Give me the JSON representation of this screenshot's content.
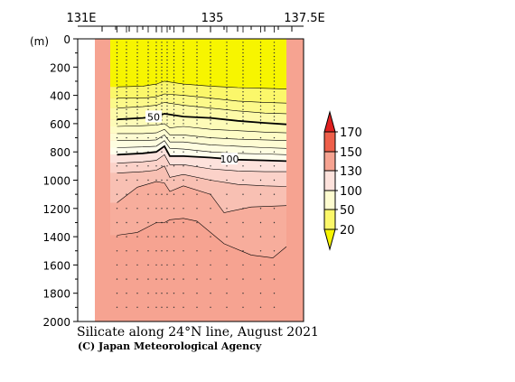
{
  "chart_data": {
    "type": "heatmap",
    "title": "Silicate along 24°N line, August 2021",
    "credit": "(C) Japan Meteorological Agency",
    "x_axis": {
      "min_lon": 131,
      "max_lon": 137.5,
      "tick_labels": [
        {
          "lon": 131,
          "label": "131E"
        },
        {
          "lon": 135,
          "label": "135"
        },
        {
          "lon": 137.5,
          "label": "137.5E"
        }
      ]
    },
    "y_axis": {
      "unit_label": "(m)",
      "range": [
        0,
        2000
      ],
      "ticks": [
        0,
        200,
        400,
        600,
        800,
        1000,
        1200,
        1400,
        1600,
        1800,
        2000
      ]
    },
    "stations_lon": [
      131.55,
      131.9,
      132.3,
      132.7,
      133.0,
      133.2,
      133.4,
      133.65,
      134.0,
      134.5,
      135.0,
      135.6,
      136.2,
      136.85,
      137.35
    ],
    "contours": [
      {
        "level": 20,
        "labeled": false,
        "lon": [
          131.55,
          132.5,
          133.0,
          133.3,
          134.0,
          135.0,
          136.0,
          137.0,
          137.8
        ],
        "depth": [
          340,
          335,
          320,
          300,
          320,
          335,
          345,
          350,
          355
        ]
      },
      {
        "level": 30,
        "labeled": false,
        "lon": [
          131.55,
          132.5,
          133.0,
          133.3,
          134.0,
          135.0,
          136.0,
          137.0,
          137.8
        ],
        "depth": [
          420,
          420,
          410,
          390,
          400,
          420,
          440,
          450,
          455
        ]
      },
      {
        "level": 40,
        "labeled": false,
        "lon": [
          131.55,
          132.5,
          133.0,
          133.3,
          134.0,
          135.0,
          136.0,
          137.0,
          137.8
        ],
        "depth": [
          490,
          480,
          470,
          450,
          470,
          490,
          510,
          525,
          530
        ]
      },
      {
        "level": 50,
        "labeled": true,
        "lon": [
          131.55,
          132.5,
          133.0,
          133.3,
          134.0,
          135.0,
          136.0,
          137.0,
          137.8
        ],
        "depth": [
          570,
          560,
          550,
          530,
          550,
          560,
          580,
          595,
          605
        ]
      },
      {
        "level": 60,
        "labeled": false,
        "lon": [
          131.55,
          132.5,
          133.0,
          133.3,
          133.5,
          134.0,
          135.0,
          136.0,
          137.0,
          137.8
        ],
        "depth": [
          620,
          615,
          610,
          600,
          630,
          620,
          640,
          650,
          660,
          665
        ]
      },
      {
        "level": 70,
        "labeled": false,
        "lon": [
          131.55,
          132.5,
          133.0,
          133.3,
          133.5,
          134.0,
          135.0,
          136.0,
          137.0,
          137.8
        ],
        "depth": [
          670,
          670,
          665,
          640,
          680,
          680,
          700,
          710,
          715,
          720
        ]
      },
      {
        "level": 80,
        "labeled": false,
        "lon": [
          131.55,
          132.5,
          133.0,
          133.3,
          133.5,
          134.0,
          135.0,
          136.0,
          137.0,
          137.8
        ],
        "depth": [
          720,
          720,
          715,
          680,
          730,
          730,
          750,
          760,
          770,
          775
        ]
      },
      {
        "level": 90,
        "labeled": false,
        "lon": [
          131.55,
          132.5,
          133.0,
          133.3,
          133.5,
          134.0,
          135.0,
          136.0,
          137.0,
          137.8
        ],
        "depth": [
          770,
          765,
          760,
          720,
          775,
          780,
          800,
          810,
          815,
          820
        ]
      },
      {
        "level": 100,
        "labeled": true,
        "lon": [
          131.55,
          132.5,
          133.0,
          133.3,
          133.5,
          134.0,
          135.0,
          136.0,
          137.0,
          137.8
        ],
        "depth": [
          820,
          810,
          800,
          760,
          830,
          830,
          840,
          855,
          860,
          865
        ]
      },
      {
        "level": 110,
        "labeled": false,
        "lon": [
          131.55,
          132.5,
          133.0,
          133.3,
          133.5,
          134.0,
          135.0,
          136.0,
          137.0,
          137.8
        ],
        "depth": [
          880,
          870,
          860,
          820,
          890,
          890,
          920,
          935,
          940,
          940
        ]
      },
      {
        "level": 120,
        "labeled": false,
        "lon": [
          131.55,
          132.5,
          133.0,
          133.3,
          133.5,
          134.0,
          135.0,
          136.0,
          137.0,
          137.8
        ],
        "depth": [
          950,
          940,
          930,
          900,
          980,
          960,
          1000,
          1030,
          1040,
          1045
        ]
      },
      {
        "level": 130,
        "labeled": false,
        "lon": [
          131.55,
          132.3,
          133.0,
          133.3,
          133.5,
          134.0,
          135.0,
          135.5,
          136.5,
          137.8
        ],
        "depth": [
          1160,
          1050,
          1010,
          1020,
          1080,
          1040,
          1100,
          1230,
          1190,
          1180
        ]
      },
      {
        "level": 140,
        "labeled": false,
        "lon": [
          131.55,
          132.3,
          133.0,
          133.3,
          133.5,
          134.0,
          134.5,
          135.5,
          136.5,
          137.3,
          137.8
        ],
        "depth": [
          1390,
          1370,
          1300,
          1300,
          1280,
          1270,
          1290,
          1450,
          1530,
          1550,
          1470
        ]
      }
    ],
    "fill_bands": [
      {
        "from": 0,
        "to": 20,
        "color": "#f7f500"
      },
      {
        "from": 20,
        "to": 30,
        "color": "#fbf76a"
      },
      {
        "from": 30,
        "to": 40,
        "color": "#fcf98a"
      },
      {
        "from": 40,
        "to": 50,
        "color": "#fdfaa8"
      },
      {
        "from": 50,
        "to": 60,
        "color": "#fdfbb8"
      },
      {
        "from": 60,
        "to": 70,
        "color": "#fefcc6"
      },
      {
        "from": 70,
        "to": 80,
        "color": "#fefcd3"
      },
      {
        "from": 80,
        "to": 90,
        "color": "#fefde0"
      },
      {
        "from": 90,
        "to": 100,
        "color": "#fffeec"
      },
      {
        "from": 100,
        "to": 110,
        "color": "#fde2dc"
      },
      {
        "from": 110,
        "to": 120,
        "color": "#fbd2c9"
      },
      {
        "from": 120,
        "to": 130,
        "color": "#f8c0b3"
      },
      {
        "from": 130,
        "to": 150,
        "color": "#f6a391"
      }
    ],
    "colorbar": {
      "ticks": [
        "170",
        "150",
        "130",
        "100",
        "50",
        "20"
      ],
      "segments": [
        {
          "level": "under",
          "color": "#f7f500"
        },
        {
          "level": "20-50",
          "color": "#fbf76a"
        },
        {
          "level": "50-100",
          "color": "#fefcd0"
        },
        {
          "level": "100-130",
          "color": "#fde2dc"
        },
        {
          "level": "130-150",
          "color": "#f6a391"
        },
        {
          "level": "150-170",
          "color": "#ee5f4a"
        },
        {
          "level": "over",
          "color": "#e02020"
        }
      ]
    }
  }
}
